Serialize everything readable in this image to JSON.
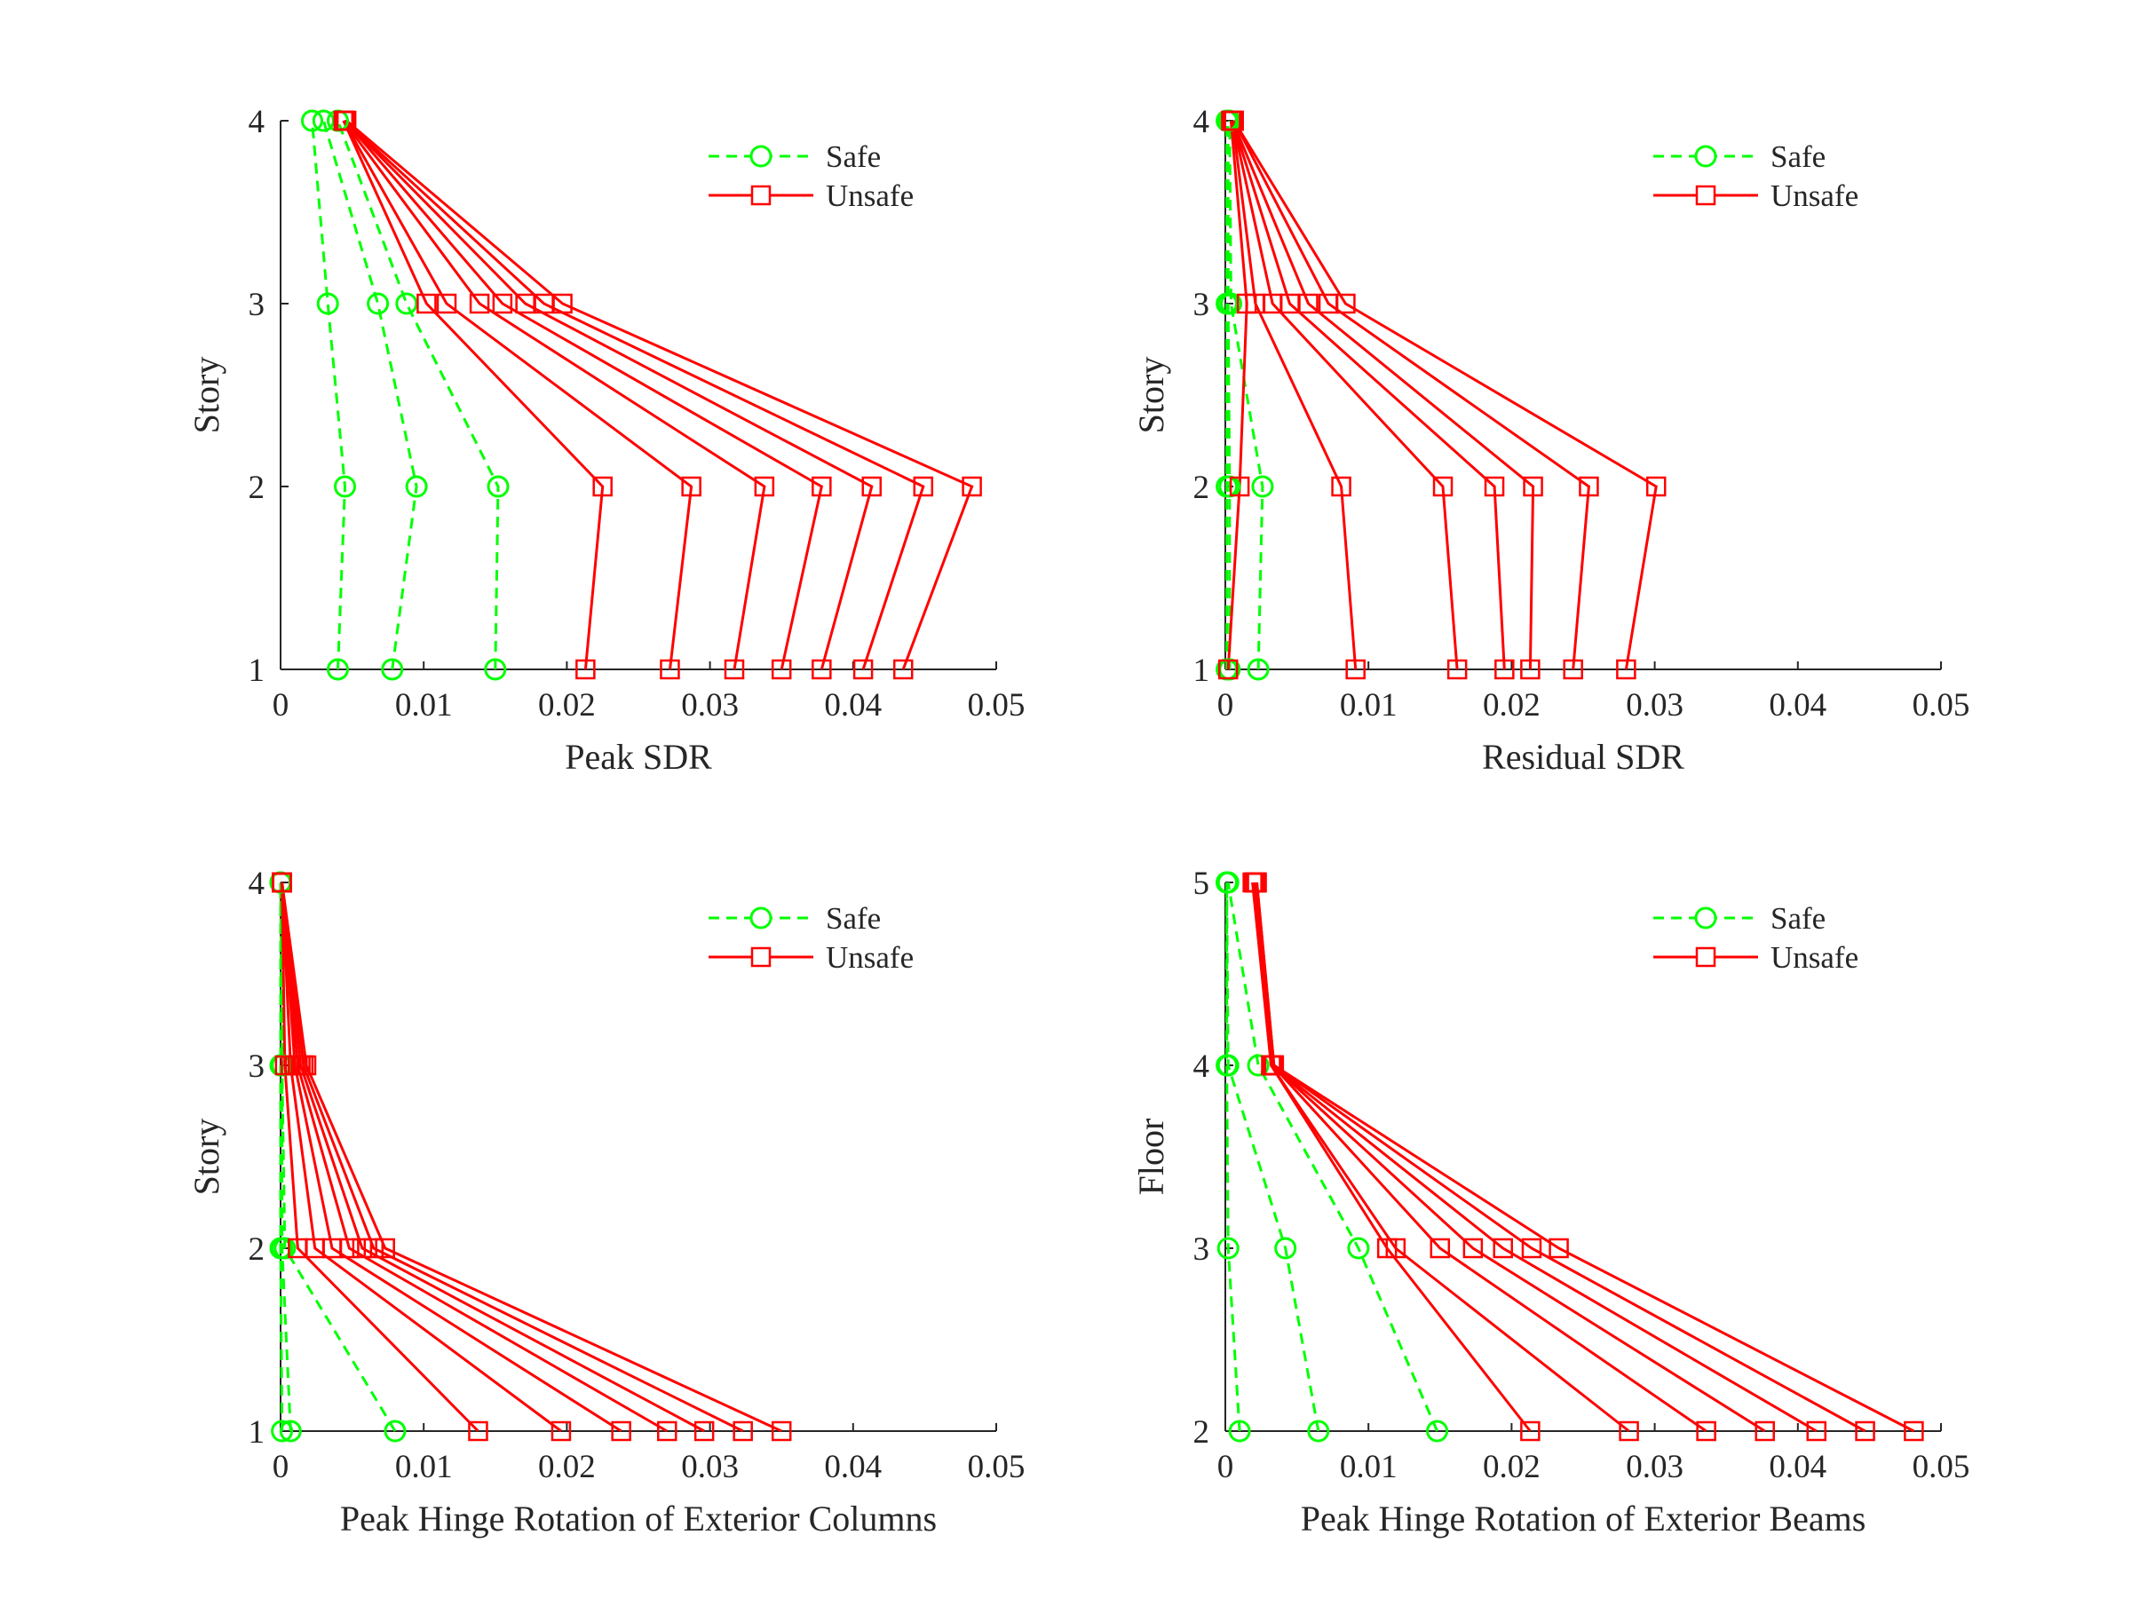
{
  "colors": {
    "safe": "#00ff00",
    "unsafe": "#ff0000",
    "axis": "#262626"
  },
  "chart_data": [
    {
      "type": "line",
      "xlabel": "Peak SDR",
      "ylabel": "Story",
      "xlim": [
        0,
        0.05
      ],
      "ylim": [
        1,
        4
      ],
      "xticks": [
        0,
        0.01,
        0.02,
        0.03,
        0.04,
        0.05
      ],
      "xtick_labels": [
        "0",
        "0.01",
        "0.02",
        "0.03",
        "0.04",
        "0.05"
      ],
      "yticks": [
        1,
        2,
        3,
        4
      ],
      "ytick_labels": [
        "1",
        "2",
        "3",
        "4"
      ],
      "legend_position": "top-right",
      "legend": [
        "Safe",
        "Unsafe"
      ],
      "series": [
        {
          "group": "safe",
          "x": [
            0.004,
            0.0045,
            0.0033,
            0.0022
          ],
          "y": [
            1,
            2,
            3,
            4
          ]
        },
        {
          "group": "safe",
          "x": [
            0.0078,
            0.0095,
            0.0068,
            0.003
          ],
          "y": [
            1,
            2,
            3,
            4
          ]
        },
        {
          "group": "safe",
          "x": [
            0.015,
            0.0152,
            0.0088,
            0.004
          ],
          "y": [
            1,
            2,
            3,
            4
          ]
        },
        {
          "group": "unsafe",
          "x": [
            0.0213,
            0.0225,
            0.0102,
            0.0044
          ],
          "y": [
            1,
            2,
            3,
            4
          ]
        },
        {
          "group": "unsafe",
          "x": [
            0.0272,
            0.0287,
            0.0116,
            0.0044
          ],
          "y": [
            1,
            2,
            3,
            4
          ]
        },
        {
          "group": "unsafe",
          "x": [
            0.0317,
            0.0338,
            0.0139,
            0.0044
          ],
          "y": [
            1,
            2,
            3,
            4
          ]
        },
        {
          "group": "unsafe",
          "x": [
            0.035,
            0.0378,
            0.0155,
            0.0045
          ],
          "y": [
            1,
            2,
            3,
            4
          ]
        },
        {
          "group": "unsafe",
          "x": [
            0.0378,
            0.0413,
            0.0171,
            0.0045
          ],
          "y": [
            1,
            2,
            3,
            4
          ]
        },
        {
          "group": "unsafe",
          "x": [
            0.0407,
            0.0449,
            0.0184,
            0.0045
          ],
          "y": [
            1,
            2,
            3,
            4
          ]
        },
        {
          "group": "unsafe",
          "x": [
            0.0435,
            0.0483,
            0.0197,
            0.0046
          ],
          "y": [
            1,
            2,
            3,
            4
          ]
        }
      ]
    },
    {
      "type": "line",
      "xlabel": "Residual SDR",
      "ylabel": "Story",
      "xlim": [
        0,
        0.05
      ],
      "ylim": [
        1,
        4
      ],
      "xticks": [
        0,
        0.01,
        0.02,
        0.03,
        0.04,
        0.05
      ],
      "xtick_labels": [
        "0",
        "0.01",
        "0.02",
        "0.03",
        "0.04",
        "0.05"
      ],
      "yticks": [
        1,
        2,
        3,
        4
      ],
      "ytick_labels": [
        "1",
        "2",
        "3",
        "4"
      ],
      "legend_position": "top-right",
      "legend": [
        "Safe",
        "Unsafe"
      ],
      "series": [
        {
          "group": "safe",
          "x": [
            0.0001,
            0.0001,
            0.0001,
            0.0001
          ],
          "y": [
            1,
            2,
            3,
            4
          ]
        },
        {
          "group": "safe",
          "x": [
            0.0003,
            0.0003,
            0.0002,
            0.0002
          ],
          "y": [
            1,
            2,
            3,
            4
          ]
        },
        {
          "group": "safe",
          "x": [
            0.0023,
            0.0026,
            0.0004,
            0.0003
          ],
          "y": [
            1,
            2,
            3,
            4
          ]
        },
        {
          "group": "unsafe",
          "x": [
            0.0002,
            0.001,
            0.0015,
            0.0004
          ],
          "y": [
            1,
            2,
            3,
            4
          ]
        },
        {
          "group": "unsafe",
          "x": [
            0.0091,
            0.0081,
            0.0021,
            0.0005
          ],
          "y": [
            1,
            2,
            3,
            4
          ]
        },
        {
          "group": "unsafe",
          "x": [
            0.0162,
            0.0152,
            0.0033,
            0.0005
          ],
          "y": [
            1,
            2,
            3,
            4
          ]
        },
        {
          "group": "unsafe",
          "x": [
            0.0195,
            0.0188,
            0.0045,
            0.0005
          ],
          "y": [
            1,
            2,
            3,
            4
          ]
        },
        {
          "group": "unsafe",
          "x": [
            0.0213,
            0.0215,
            0.0058,
            0.0005
          ],
          "y": [
            1,
            2,
            3,
            4
          ]
        },
        {
          "group": "unsafe",
          "x": [
            0.0243,
            0.0254,
            0.0072,
            0.0006
          ],
          "y": [
            1,
            2,
            3,
            4
          ]
        },
        {
          "group": "unsafe",
          "x": [
            0.028,
            0.0301,
            0.0084,
            0.0006
          ],
          "y": [
            1,
            2,
            3,
            4
          ]
        }
      ]
    },
    {
      "type": "line",
      "xlabel": "Peak Hinge Rotation of Exterior Columns",
      "ylabel": "Story",
      "xlim": [
        0,
        0.05
      ],
      "ylim": [
        1,
        4
      ],
      "xticks": [
        0,
        0.01,
        0.02,
        0.03,
        0.04,
        0.05
      ],
      "xtick_labels": [
        "0",
        "0.01",
        "0.02",
        "0.03",
        "0.04",
        "0.05"
      ],
      "yticks": [
        1,
        2,
        3,
        4
      ],
      "ytick_labels": [
        "1",
        "2",
        "3",
        "4"
      ],
      "legend_position": "top-right",
      "legend": [
        "Safe",
        "Unsafe"
      ],
      "series": [
        {
          "group": "safe",
          "x": [
            0.0001,
            0.0,
            0.0,
            0.0
          ],
          "y": [
            1,
            2,
            3,
            4
          ]
        },
        {
          "group": "safe",
          "x": [
            0.0007,
            0.0001,
            0.0001,
            0.0
          ],
          "y": [
            1,
            2,
            3,
            4
          ]
        },
        {
          "group": "safe",
          "x": [
            0.008,
            0.0003,
            0.0001,
            0.0
          ],
          "y": [
            1,
            2,
            3,
            4
          ]
        },
        {
          "group": "unsafe",
          "x": [
            0.0138,
            0.0012,
            0.0003,
            0.0001
          ],
          "y": [
            1,
            2,
            3,
            4
          ]
        },
        {
          "group": "unsafe",
          "x": [
            0.0196,
            0.0024,
            0.0007,
            0.0001
          ],
          "y": [
            1,
            2,
            3,
            4
          ]
        },
        {
          "group": "unsafe",
          "x": [
            0.0238,
            0.0036,
            0.001,
            0.0001
          ],
          "y": [
            1,
            2,
            3,
            4
          ]
        },
        {
          "group": "unsafe",
          "x": [
            0.027,
            0.0048,
            0.0012,
            0.0001
          ],
          "y": [
            1,
            2,
            3,
            4
          ]
        },
        {
          "group": "unsafe",
          "x": [
            0.0296,
            0.0057,
            0.0014,
            0.0001
          ],
          "y": [
            1,
            2,
            3,
            4
          ]
        },
        {
          "group": "unsafe",
          "x": [
            0.0323,
            0.0065,
            0.0016,
            0.0001
          ],
          "y": [
            1,
            2,
            3,
            4
          ]
        },
        {
          "group": "unsafe",
          "x": [
            0.035,
            0.0073,
            0.0018,
            0.0001
          ],
          "y": [
            1,
            2,
            3,
            4
          ]
        }
      ]
    },
    {
      "type": "line",
      "xlabel": "Peak Hinge Rotation of Exterior Beams",
      "ylabel": "Floor",
      "xlim": [
        0,
        0.05
      ],
      "ylim": [
        2,
        5
      ],
      "xticks": [
        0,
        0.01,
        0.02,
        0.03,
        0.04,
        0.05
      ],
      "xtick_labels": [
        "0",
        "0.01",
        "0.02",
        "0.03",
        "0.04",
        "0.05"
      ],
      "yticks": [
        2,
        3,
        4,
        5
      ],
      "ytick_labels": [
        "2",
        "3",
        "4",
        "5"
      ],
      "legend_position": "top-right",
      "legend": [
        "Safe",
        "Unsafe"
      ],
      "series": [
        {
          "group": "safe",
          "x": [
            0.001,
            0.0002,
            0.0001,
            0.0001
          ],
          "y": [
            2,
            3,
            4,
            5
          ]
        },
        {
          "group": "safe",
          "x": [
            0.0065,
            0.0042,
            0.0002,
            0.0001
          ],
          "y": [
            2,
            3,
            4,
            5
          ]
        },
        {
          "group": "safe",
          "x": [
            0.0148,
            0.0093,
            0.0023,
            0.0002
          ],
          "y": [
            2,
            3,
            4,
            5
          ]
        },
        {
          "group": "unsafe",
          "x": [
            0.0213,
            0.0113,
            0.0032,
            0.0019
          ],
          "y": [
            2,
            3,
            4,
            5
          ]
        },
        {
          "group": "unsafe",
          "x": [
            0.0282,
            0.0119,
            0.0032,
            0.002
          ],
          "y": [
            2,
            3,
            4,
            5
          ]
        },
        {
          "group": "unsafe",
          "x": [
            0.0336,
            0.015,
            0.0033,
            0.002
          ],
          "y": [
            2,
            3,
            4,
            5
          ]
        },
        {
          "group": "unsafe",
          "x": [
            0.0377,
            0.0173,
            0.0033,
            0.0021
          ],
          "y": [
            2,
            3,
            4,
            5
          ]
        },
        {
          "group": "unsafe",
          "x": [
            0.0413,
            0.0194,
            0.0033,
            0.0021
          ],
          "y": [
            2,
            3,
            4,
            5
          ]
        },
        {
          "group": "unsafe",
          "x": [
            0.0447,
            0.0214,
            0.0034,
            0.0022
          ],
          "y": [
            2,
            3,
            4,
            5
          ]
        },
        {
          "group": "unsafe",
          "x": [
            0.0481,
            0.0233,
            0.0034,
            0.0022
          ],
          "y": [
            2,
            3,
            4,
            5
          ]
        }
      ]
    }
  ]
}
